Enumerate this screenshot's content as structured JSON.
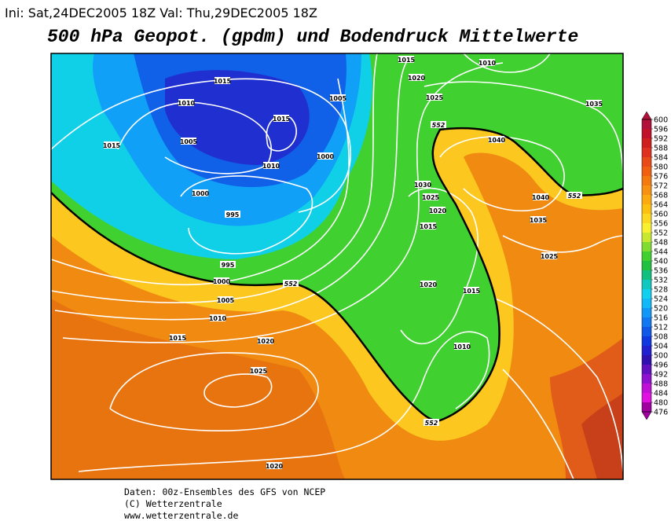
{
  "header": {
    "run_info": "Ini: Sat,24DEC2005 18Z  Val: Thu,29DEC2005 18Z",
    "title": "500 hPa Geopot. (gpdm) und Bodendruck Mittelwerte"
  },
  "map": {
    "isobar_labels": [
      1015,
      1010,
      1015,
      1020,
      1010,
      1005,
      1025,
      1035,
      1015,
      1015,
      1005,
      1040,
      1010,
      1000,
      1030,
      1000,
      1025,
      1040,
      1020,
      995,
      1035,
      1015,
      1025,
      995,
      1000,
      1005,
      1010,
      1020,
      1015,
      1015,
      1020,
      1010,
      1025,
      1020
    ],
    "contour_labels": [
      552,
      552,
      552,
      552
    ]
  },
  "colorbar": {
    "ticks": [
      476,
      480,
      484,
      488,
      492,
      496,
      500,
      504,
      508,
      512,
      516,
      520,
      524,
      528,
      532,
      536,
      540,
      544,
      548,
      552,
      556,
      560,
      564,
      568,
      572,
      576,
      580,
      584,
      588,
      592,
      596,
      600
    ],
    "colors": [
      "#a000a0",
      "#e010e0",
      "#c010d8",
      "#9010d0",
      "#6010c0",
      "#3010b0",
      "#2020d0",
      "#1038e0",
      "#1058e8",
      "#1078f0",
      "#1098f8",
      "#10b8f8",
      "#10d0f0",
      "#10c8c0",
      "#10c080",
      "#20c040",
      "#40d030",
      "#80dc30",
      "#c8e830",
      "#f8f030",
      "#fcd820",
      "#fcc010",
      "#fbaa10",
      "#f89010",
      "#f47a10",
      "#f06010",
      "#e84a18",
      "#e03020",
      "#d01e1e",
      "#c0102a",
      "#b0103a"
    ]
  },
  "footer": {
    "line1": "Daten: 00z-Ensembles des GFS von NCEP",
    "line2": "(C) Wetterzentrale",
    "line3": "www.wetterzentrale.de"
  }
}
